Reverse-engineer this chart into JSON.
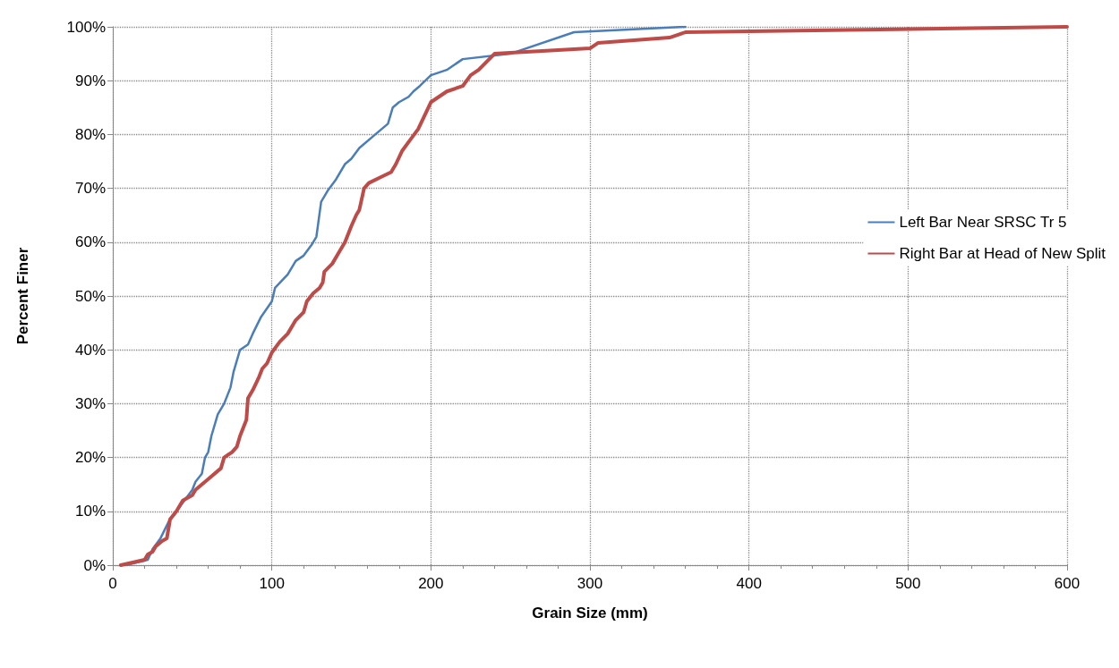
{
  "chart_data": {
    "type": "line",
    "xlabel": "Grain Size (mm)",
    "ylabel": "Percent Finer",
    "xlim": [
      0,
      600
    ],
    "xticks": [
      0,
      100,
      200,
      300,
      400,
      500,
      600
    ],
    "ylim": [
      0,
      100
    ],
    "yticks": [
      {
        "value": 0,
        "label": "0%"
      },
      {
        "value": 10,
        "label": "10%"
      },
      {
        "value": 20,
        "label": "20%"
      },
      {
        "value": 30,
        "label": "30%"
      },
      {
        "value": 40,
        "label": "40%"
      },
      {
        "value": 50,
        "label": "50%"
      },
      {
        "value": 60,
        "label": "60%"
      },
      {
        "value": 70,
        "label": "70%"
      },
      {
        "value": 80,
        "label": "80%"
      },
      {
        "value": 90,
        "label": "90%"
      },
      {
        "value": 100,
        "label": "100%"
      }
    ],
    "grid": true,
    "legend": "right",
    "marker": "none",
    "line_style": "solid",
    "series": [
      {
        "name": "Left Bar Near SRSC Tr 5",
        "color": "#4a7ebb",
        "x": [
          8,
          22,
          25,
          30,
          35,
          40,
          45,
          50,
          52,
          56,
          58,
          60,
          62,
          66,
          70,
          74,
          76,
          80,
          85,
          88,
          93,
          100,
          102,
          110,
          115,
          120,
          125,
          128,
          131,
          135,
          140,
          146,
          150,
          155,
          165,
          173,
          176,
          180,
          186,
          189,
          193,
          200,
          210,
          220,
          250,
          290,
          360
        ],
        "values": [
          0,
          1,
          3,
          5,
          8,
          10,
          12,
          14,
          15.5,
          17,
          20,
          21,
          24,
          28,
          30,
          33,
          36,
          40,
          41,
          43,
          46,
          49,
          51.5,
          54,
          56.5,
          57.5,
          59.5,
          61,
          67.5,
          69.5,
          71.5,
          74.5,
          75.5,
          77.5,
          80,
          82,
          85,
          86,
          87,
          88,
          89,
          91,
          92,
          94,
          95,
          99,
          100
        ]
      },
      {
        "name": "Right Bar at Head of New Split",
        "color": "#be4b48",
        "x": [
          5,
          20,
          22,
          25,
          27,
          31,
          34,
          36,
          40,
          44,
          50,
          52,
          60,
          68,
          70,
          75,
          78,
          80,
          84,
          85,
          88,
          92,
          94,
          97,
          100,
          105,
          110,
          115,
          120,
          122,
          126,
          130,
          132,
          133,
          138,
          142,
          146,
          150,
          153,
          155,
          158,
          161,
          168,
          175,
          178,
          182,
          187,
          192,
          200,
          210,
          220,
          225,
          230,
          240,
          300,
          305,
          350,
          360,
          600
        ],
        "values": [
          0,
          1,
          2,
          2.5,
          3.5,
          4.5,
          5,
          8.5,
          10,
          12,
          13,
          14,
          16,
          18,
          20,
          21,
          22,
          24,
          27,
          31,
          32.5,
          35,
          36.5,
          37.5,
          39.5,
          41.5,
          43,
          45.5,
          47,
          49,
          50.5,
          51.5,
          52.5,
          54.5,
          56,
          58,
          60,
          63,
          65,
          66,
          70,
          71,
          72,
          73,
          74.5,
          77,
          79,
          81,
          86,
          88,
          89,
          91,
          92,
          95,
          96,
          97,
          98,
          99,
          100
        ]
      }
    ]
  }
}
